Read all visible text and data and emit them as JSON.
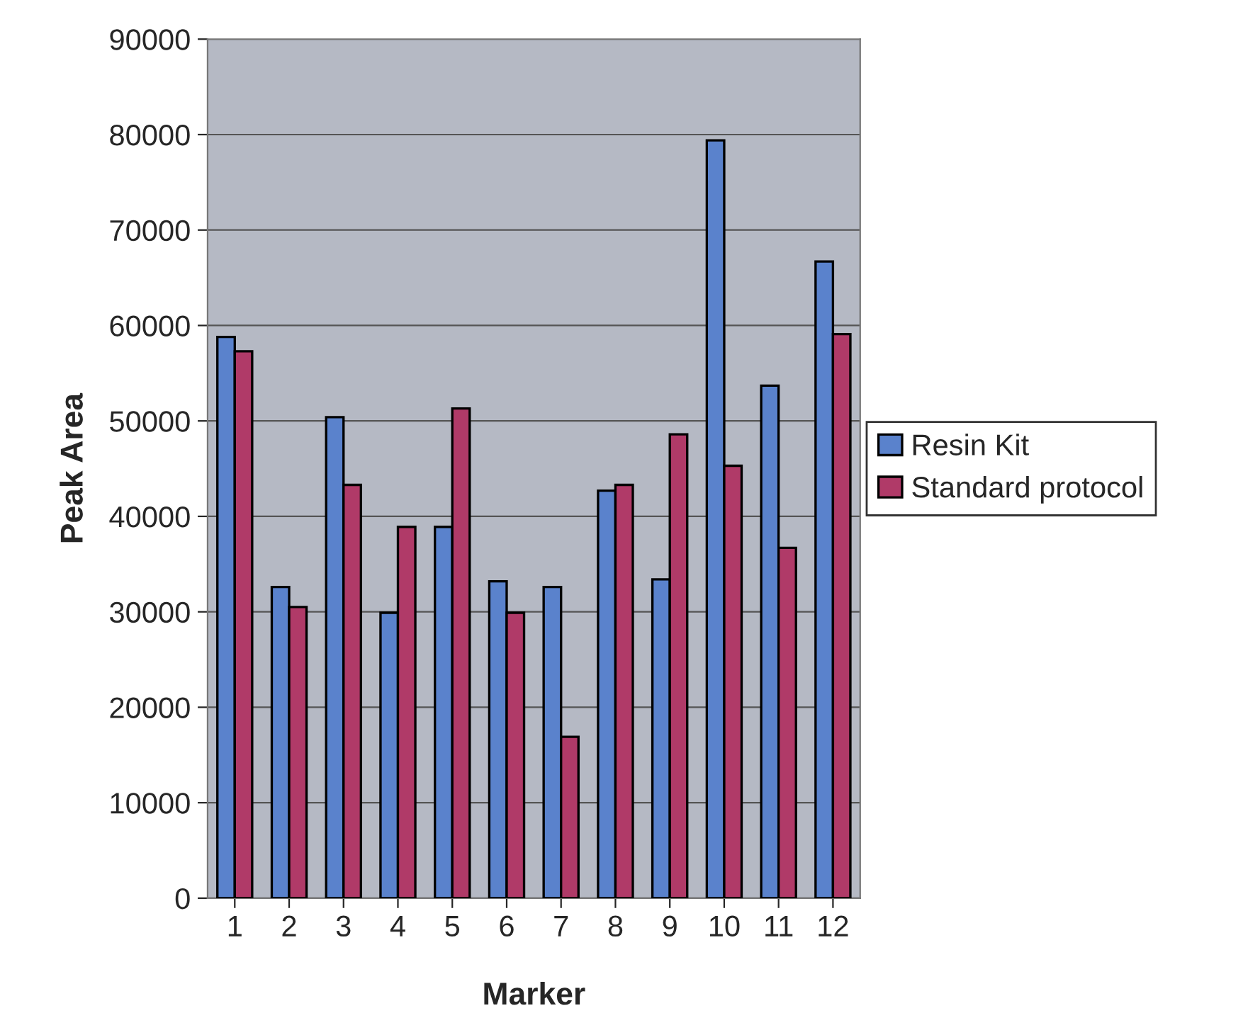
{
  "chart_data": {
    "type": "bar",
    "xlabel": "Marker",
    "ylabel": "Peak Area",
    "categories": [
      "1",
      "2",
      "3",
      "4",
      "5",
      "6",
      "7",
      "8",
      "9",
      "10",
      "11",
      "12"
    ],
    "series": [
      {
        "name": "Resin Kit",
        "color": "#5a82cc",
        "values": [
          58800,
          32600,
          50400,
          29900,
          38900,
          33200,
          32600,
          42700,
          33400,
          79400,
          53700,
          66700
        ]
      },
      {
        "name": "Standard protocol",
        "color": "#b03a68",
        "values": [
          57300,
          30500,
          43300,
          38900,
          51300,
          29900,
          16900,
          43300,
          48600,
          45300,
          36700,
          59100
        ]
      }
    ],
    "ylim": [
      0,
      90000
    ],
    "yticks": [
      0,
      10000,
      20000,
      30000,
      40000,
      50000,
      60000,
      70000,
      80000,
      90000
    ],
    "grid": "y",
    "legend": "right"
  }
}
